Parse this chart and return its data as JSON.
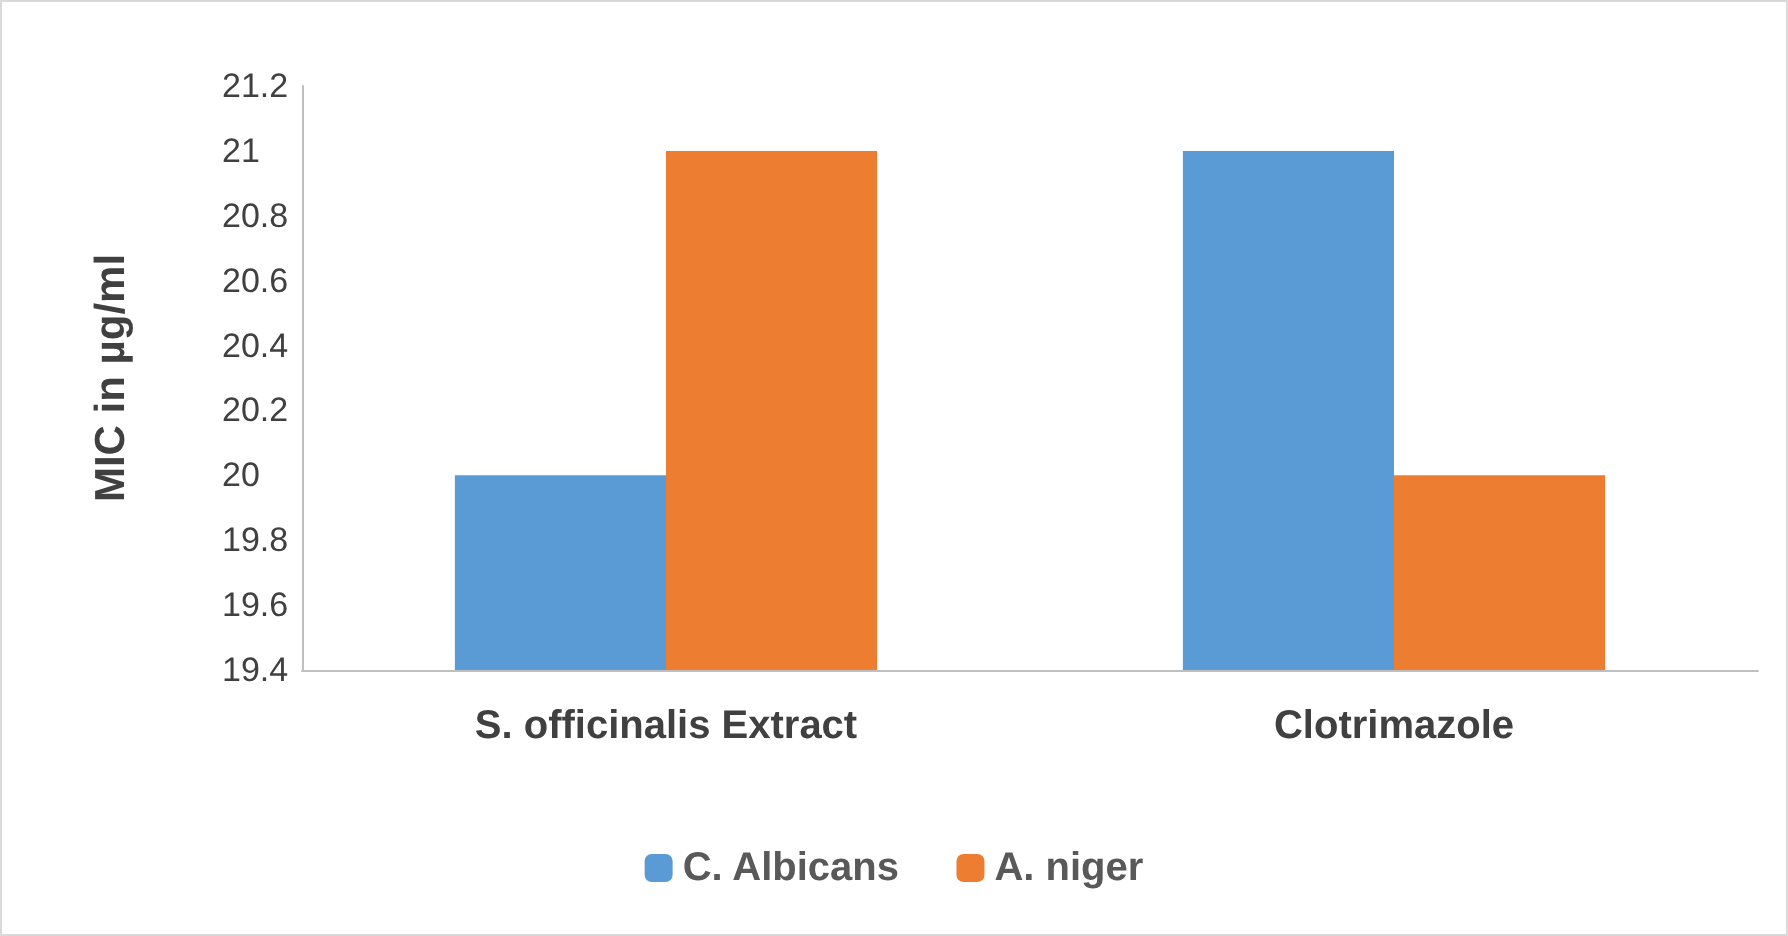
{
  "chart_data": {
    "type": "bar",
    "ylabel": "MIC in µg/ml",
    "categories": [
      "S. officinalis Extract",
      "Clotrimazole"
    ],
    "series": [
      {
        "name": "C. Albicans",
        "color": "#5b9bd5",
        "values": [
          20,
          21
        ]
      },
      {
        "name": "A. niger",
        "color": "#ed7d31",
        "values": [
          21,
          20
        ]
      }
    ],
    "ylim": [
      19.4,
      21.2
    ],
    "yticks": [
      19.4,
      19.6,
      19.8,
      20,
      20.2,
      20.4,
      20.6,
      20.8,
      21,
      21.2
    ],
    "grid": false,
    "legend": "bottom"
  }
}
